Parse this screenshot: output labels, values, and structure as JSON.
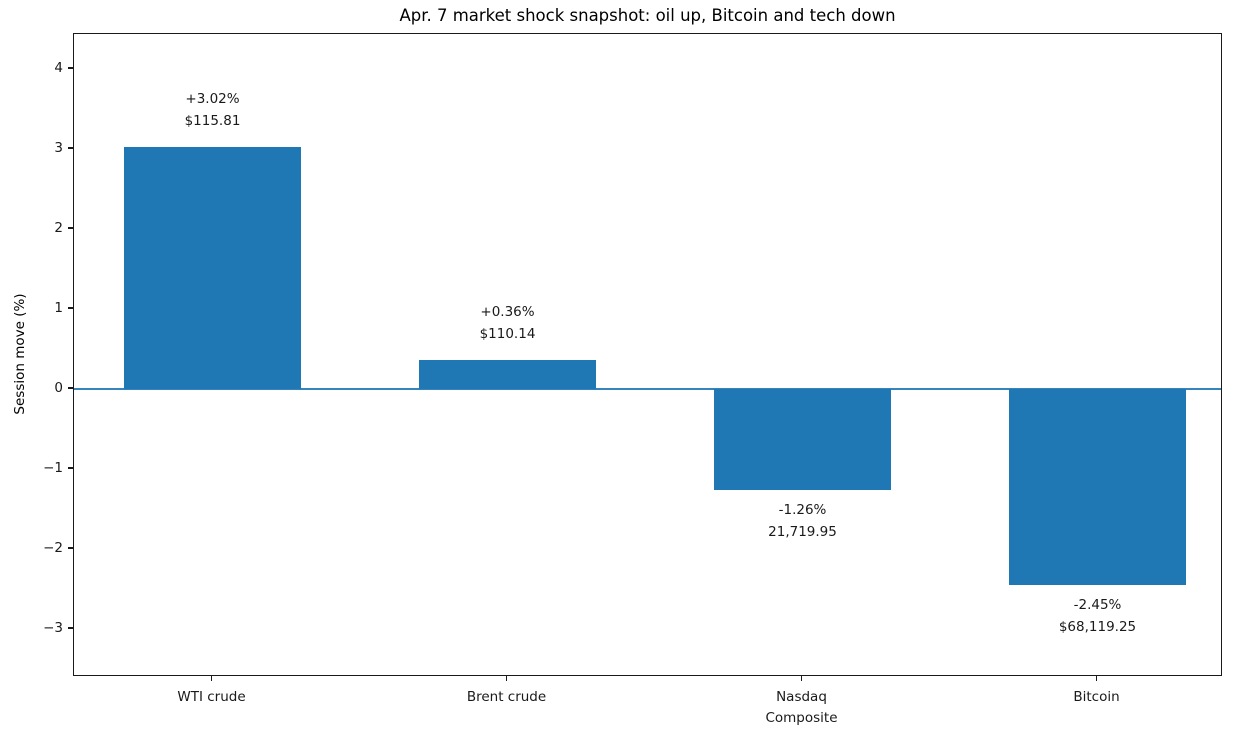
{
  "chart_data": {
    "type": "bar",
    "title": "Apr. 7 market shock snapshot: oil up, Bitcoin and tech down",
    "xlabel": "",
    "ylabel": "Session move (%)",
    "categories": [
      "WTI crude",
      "Brent crude",
      "Nasdaq\nComposite",
      "Bitcoin"
    ],
    "values": [
      3.02,
      0.36,
      -1.26,
      -2.45
    ],
    "bar_annotations": [
      "+3.02%\n$115.81",
      "+0.36%\n$110.14",
      "-1.26%\n21,719.95",
      "-2.45%\n$68,119.25"
    ],
    "asset_prices": [
      "$115.81",
      "$110.14",
      "21,719.95",
      "$68,119.25"
    ],
    "ytick_labels": [
      "4",
      "3",
      "2",
      "1",
      "0",
      "−1",
      "−2",
      "−3"
    ],
    "yticks": [
      4,
      3,
      2,
      1,
      0,
      -1,
      -2,
      -3
    ],
    "ylim": [
      -3.6,
      4.4375
    ],
    "bar_color": "#1f77b4",
    "zero_line_color": "#1f77b4",
    "grid": false,
    "legend": null
  }
}
